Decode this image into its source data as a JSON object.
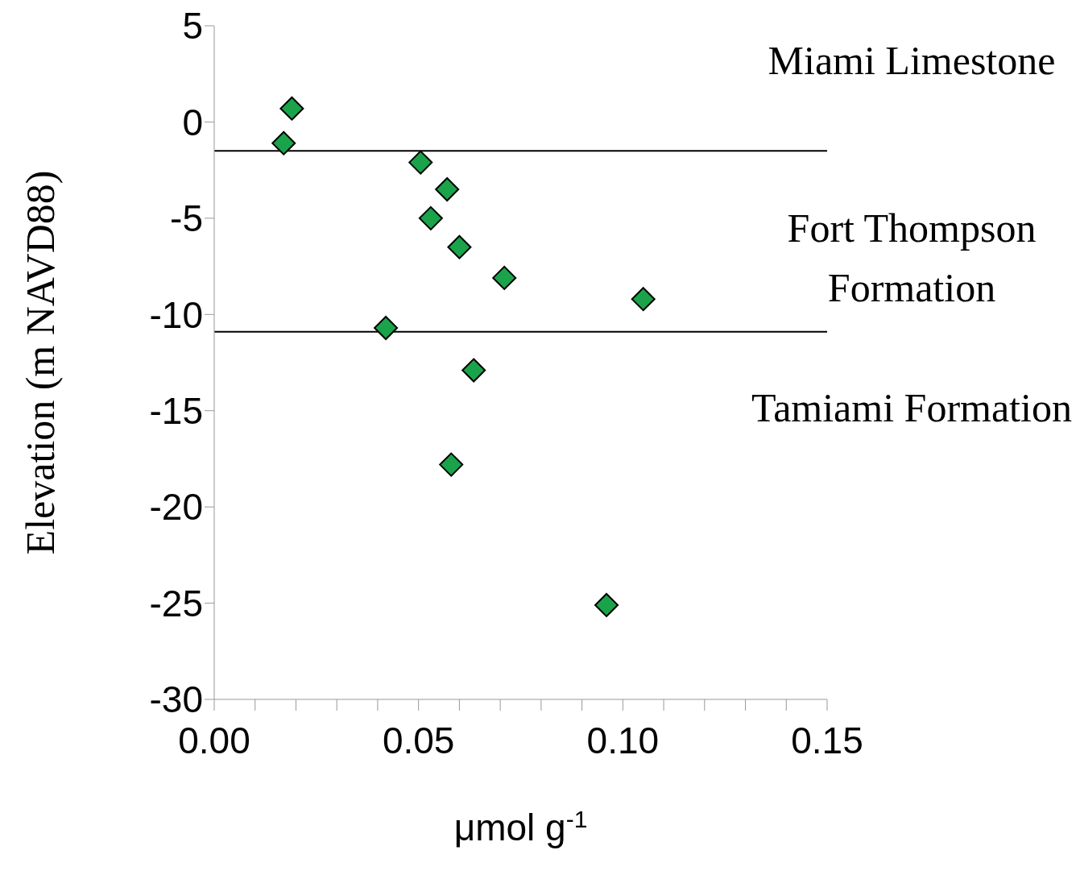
{
  "chart_data": {
    "type": "scatter",
    "xlabel": "μmol g$^{-1}$",
    "ylabel": "Elevation (m NAVD88)",
    "x": [
      0.019,
      0.017,
      0.0505,
      0.057,
      0.053,
      0.06,
      0.071,
      0.105,
      0.042,
      0.0635,
      0.058,
      0.096
    ],
    "values": [
      0.7,
      -1.1,
      -2.1,
      -3.5,
      -5.0,
      -6.5,
      -8.1,
      -9.2,
      -10.7,
      -12.9,
      -17.8,
      -25.1
    ],
    "color": "#1aa34a",
    "marker": "diamond",
    "xlim": [
      0,
      0.15
    ],
    "xticks": [
      {
        "value": 0,
        "label": "0.00"
      },
      {
        "value": 0.01,
        "label": null
      },
      {
        "value": 0.02,
        "label": null
      },
      {
        "value": 0.03,
        "label": null
      },
      {
        "value": 0.04,
        "label": null
      },
      {
        "value": 0.05,
        "label": "0.05"
      },
      {
        "value": 0.06,
        "label": null
      },
      {
        "value": 0.07,
        "label": null
      },
      {
        "value": 0.08,
        "label": null
      },
      {
        "value": 0.09,
        "label": null
      },
      {
        "value": 0.1,
        "label": "0.10"
      },
      {
        "value": 0.11,
        "label": null
      },
      {
        "value": 0.12,
        "label": null
      },
      {
        "value": 0.13,
        "label": null
      },
      {
        "value": 0.14,
        "label": null
      },
      {
        "value": 0.15,
        "label": "0.15"
      }
    ],
    "ylim": [
      -30,
      5
    ],
    "yticks": [
      5,
      0,
      -5,
      -10,
      -15,
      -20,
      -25,
      -30
    ],
    "ref_lines": [
      {
        "axis": "y",
        "value": -1.5,
        "color": "#000000"
      },
      {
        "axis": "y",
        "value": -10.9,
        "color": "#000000"
      }
    ],
    "annotations": [
      "Miami Limestone",
      "Fort Thompson Formation",
      "Tamiami Formation"
    ],
    "grid": false,
    "legend": false
  }
}
